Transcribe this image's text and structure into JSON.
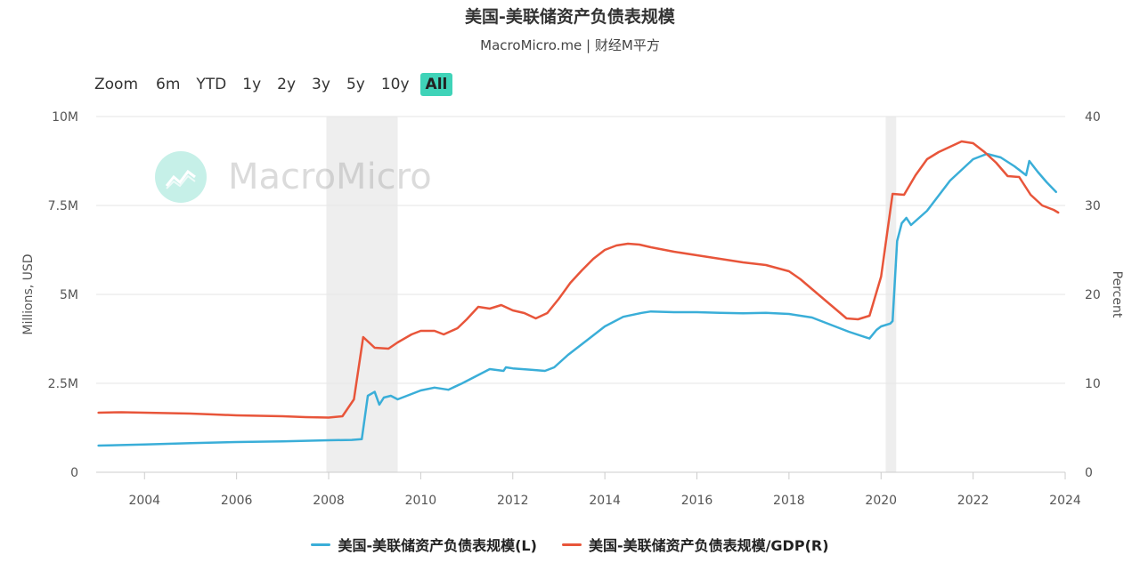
{
  "header": {
    "title": "美国-美联储资产负债表规模",
    "subtitle": "MacroMicro.me | 财经M平方"
  },
  "range_selector": {
    "label": "Zoom",
    "buttons": [
      "6m",
      "YTD",
      "1y",
      "2y",
      "3y",
      "5y",
      "10y",
      "All"
    ],
    "active": "All"
  },
  "watermark": {
    "text": "MacroMicro"
  },
  "colors": {
    "left_series": "#3aaed8",
    "right_series": "#e8553a",
    "recession": "#eeeeee",
    "accent": "#3fd3b8"
  },
  "chart_data": {
    "type": "line",
    "title": "美国-美联储资产负债表规模",
    "subtitle": "MacroMicro.me | 财经M平方",
    "x_ticks": [
      "2004",
      "2006",
      "2008",
      "2010",
      "2012",
      "2014",
      "2016",
      "2018",
      "2020",
      "2022",
      "2024"
    ],
    "xlim": [
      2002.95,
      2024.0
    ],
    "y_left": {
      "label": "Millions, USD",
      "lim": [
        0,
        10000000
      ],
      "ticks": [
        0,
        2500000,
        5000000,
        7500000,
        10000000
      ],
      "tick_labels": [
        "0",
        "2.5M",
        "5M",
        "7.5M",
        "10M"
      ]
    },
    "y_right": {
      "label": "Percent",
      "lim": [
        0,
        40
      ],
      "ticks": [
        0,
        10,
        20,
        30,
        40
      ],
      "tick_labels": [
        "0",
        "10",
        "20",
        "30",
        "40"
      ]
    },
    "shaded_periods": [
      [
        2007.95,
        2009.5
      ],
      [
        2020.1,
        2020.33
      ]
    ],
    "legend_position": "bottom",
    "grid": true,
    "series": [
      {
        "name": "美国-美联储资产负债表规模(L)",
        "axis": "left",
        "x": [
          2003.0,
          2004.0,
          2005.0,
          2006.0,
          2007.0,
          2008.0,
          2008.5,
          2008.72,
          2008.85,
          2009.0,
          2009.1,
          2009.2,
          2009.35,
          2009.5,
          2009.7,
          2010.0,
          2010.3,
          2010.6,
          2010.9,
          2011.2,
          2011.5,
          2011.8,
          2011.85,
          2012.0,
          2012.4,
          2012.7,
          2012.9,
          2013.2,
          2013.6,
          2014.0,
          2014.4,
          2014.8,
          2015.0,
          2015.5,
          2016.0,
          2016.5,
          2017.0,
          2017.5,
          2018.0,
          2018.5,
          2018.9,
          2019.3,
          2019.7,
          2019.75,
          2019.9,
          2020.0,
          2020.2,
          2020.25,
          2020.35,
          2020.45,
          2020.55,
          2020.65,
          2021.0,
          2021.5,
          2022.0,
          2022.3,
          2022.6,
          2022.9,
          2023.15,
          2023.22,
          2023.4,
          2023.6,
          2023.8
        ],
        "values": [
          750000,
          780000,
          820000,
          850000,
          870000,
          900000,
          910000,
          930000,
          2150000,
          2260000,
          1900000,
          2100000,
          2150000,
          2050000,
          2150000,
          2300000,
          2380000,
          2320000,
          2500000,
          2700000,
          2900000,
          2850000,
          2950000,
          2920000,
          2880000,
          2850000,
          2950000,
          3300000,
          3700000,
          4100000,
          4370000,
          4480000,
          4520000,
          4500000,
          4500000,
          4480000,
          4470000,
          4480000,
          4450000,
          4350000,
          4150000,
          3950000,
          3780000,
          3760000,
          4000000,
          4100000,
          4180000,
          4250000,
          6500000,
          7000000,
          7150000,
          6950000,
          7350000,
          8200000,
          8800000,
          8950000,
          8850000,
          8600000,
          8350000,
          8750000,
          8450000,
          8150000,
          7880000
        ]
      },
      {
        "name": "美国-美联储资产负债表规模/GDP(R)",
        "axis": "right",
        "x": [
          2003.0,
          2003.5,
          2004.0,
          2004.5,
          2005.0,
          2005.5,
          2006.0,
          2006.5,
          2007.0,
          2007.5,
          2008.0,
          2008.3,
          2008.55,
          2008.75,
          2009.0,
          2009.3,
          2009.5,
          2009.8,
          2010.0,
          2010.3,
          2010.5,
          2010.8,
          2011.0,
          2011.25,
          2011.5,
          2011.75,
          2012.0,
          2012.25,
          2012.5,
          2012.75,
          2013.0,
          2013.25,
          2013.5,
          2013.75,
          2014.0,
          2014.25,
          2014.5,
          2014.75,
          2015.0,
          2015.5,
          2016.0,
          2016.5,
          2017.0,
          2017.5,
          2018.0,
          2018.25,
          2018.5,
          2018.75,
          2019.0,
          2019.25,
          2019.5,
          2019.75,
          2020.0,
          2020.25,
          2020.5,
          2020.75,
          2021.0,
          2021.25,
          2021.5,
          2021.75,
          2022.0,
          2022.25,
          2022.5,
          2022.75,
          2023.0,
          2023.25,
          2023.5,
          2023.75,
          2023.85
        ],
        "values": [
          6.7,
          6.75,
          6.7,
          6.65,
          6.6,
          6.5,
          6.4,
          6.35,
          6.3,
          6.2,
          6.15,
          6.3,
          8.2,
          15.2,
          14.0,
          13.9,
          14.6,
          15.5,
          15.9,
          15.9,
          15.5,
          16.2,
          17.2,
          18.6,
          18.4,
          18.8,
          18.2,
          17.9,
          17.3,
          17.9,
          19.5,
          21.3,
          22.7,
          24.0,
          25.0,
          25.5,
          25.7,
          25.6,
          25.3,
          24.8,
          24.4,
          24.0,
          23.6,
          23.3,
          22.6,
          21.7,
          20.6,
          19.5,
          18.4,
          17.3,
          17.2,
          17.6,
          22.0,
          31.3,
          31.2,
          33.4,
          35.2,
          36.0,
          36.6,
          37.2,
          37.0,
          36.0,
          34.8,
          33.3,
          33.2,
          31.2,
          30.0,
          29.5,
          29.2
        ]
      }
    ]
  },
  "legend": {
    "items": [
      {
        "label": "美国-美联储资产负债表规模(L)"
      },
      {
        "label": "美国-美联储资产负债表规模/GDP(R)"
      }
    ]
  }
}
